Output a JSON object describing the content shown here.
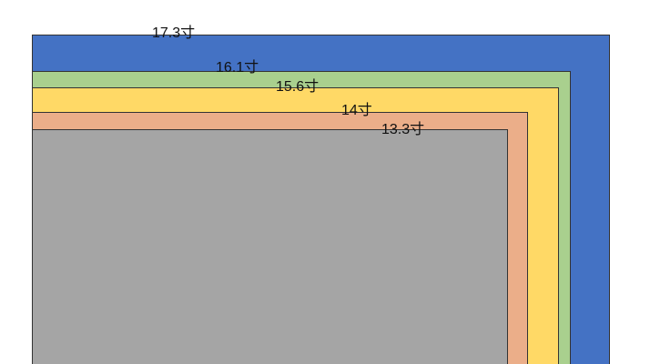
{
  "screens": [
    {
      "label": "17.3寸"
    },
    {
      "label": "16.1寸"
    },
    {
      "label": "15.6寸"
    },
    {
      "label": "14寸"
    },
    {
      "label": "13.3寸"
    }
  ]
}
